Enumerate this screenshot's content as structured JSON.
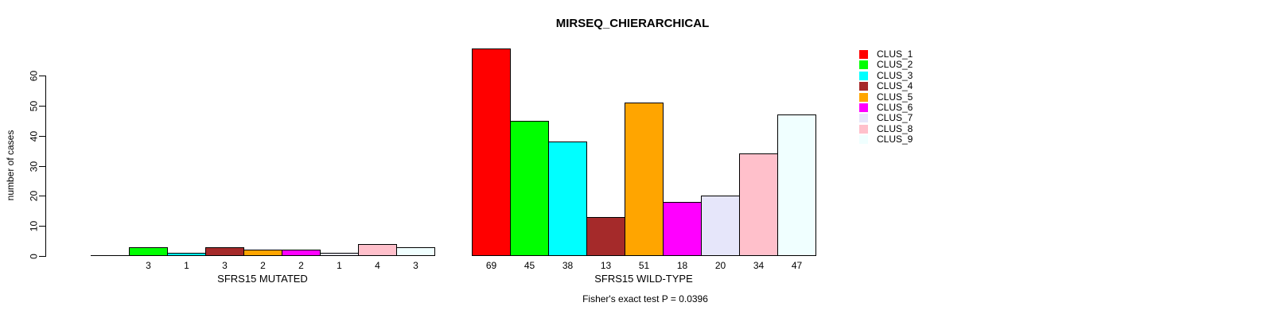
{
  "chart_data": {
    "type": "bar",
    "title": "MIRSEQ_CHIERARCHICAL",
    "ylabel": "number of cases",
    "xlabel": "",
    "yticks": [
      0,
      10,
      20,
      30,
      40,
      50,
      60
    ],
    "ylim": [
      0,
      60
    ],
    "grid": false,
    "legend_position": "right",
    "bar_border_color": "#000000",
    "clusters": [
      {
        "name": "CLUS_1",
        "color": "#FF0000"
      },
      {
        "name": "CLUS_2",
        "color": "#00FF00"
      },
      {
        "name": "CLUS_3",
        "color": "#00FFFF"
      },
      {
        "name": "CLUS_4",
        "color": "#A52A2A"
      },
      {
        "name": "CLUS_5",
        "color": "#FFA500"
      },
      {
        "name": "CLUS_6",
        "color": "#FF00FF"
      },
      {
        "name": "CLUS_7",
        "color": "#E6E6FA"
      },
      {
        "name": "CLUS_8",
        "color": "#FFC0CB"
      },
      {
        "name": "CLUS_9",
        "color": "#F0FFFF"
      }
    ],
    "groups": [
      {
        "label": "SFRS15 MUTATED",
        "values": [
          0,
          3,
          1,
          3,
          2,
          2,
          1,
          4,
          3
        ],
        "bar_labels": [
          "",
          "3",
          "1",
          "3",
          "2",
          "2",
          "1",
          "4",
          "3"
        ]
      },
      {
        "label": "SFRS15 WILD-TYPE",
        "values": [
          69,
          45,
          38,
          13,
          51,
          18,
          20,
          34,
          47
        ],
        "bar_labels": [
          "69",
          "45",
          "38",
          "13",
          "51",
          "18",
          "20",
          "34",
          "47"
        ]
      }
    ],
    "footnote": "Fisher's exact test P = 0.0396"
  }
}
